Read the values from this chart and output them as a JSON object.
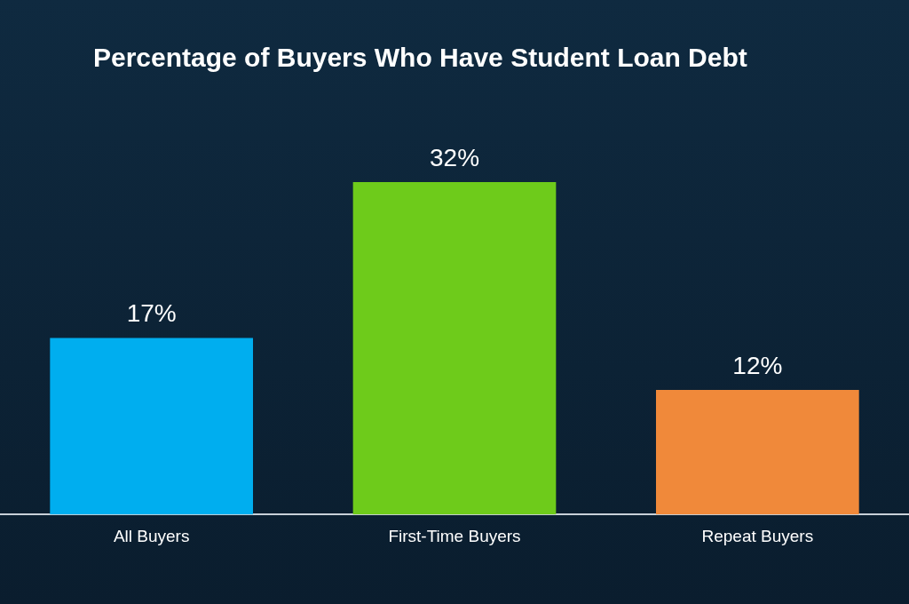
{
  "chart_data": {
    "type": "bar",
    "title": "Percentage of Buyers Who Have Student Loan Debt",
    "categories": [
      "All Buyers",
      "First-Time Buyers",
      "Repeat Buyers"
    ],
    "values": [
      17,
      32,
      12
    ],
    "colors": [
      "#00aeef",
      "#6ecb1b",
      "#f0893a"
    ],
    "data_labels": true,
    "value_labels": [
      "17%",
      "32%",
      "12%"
    ],
    "tick_labels": "x",
    "grid": false,
    "legend": false
  }
}
